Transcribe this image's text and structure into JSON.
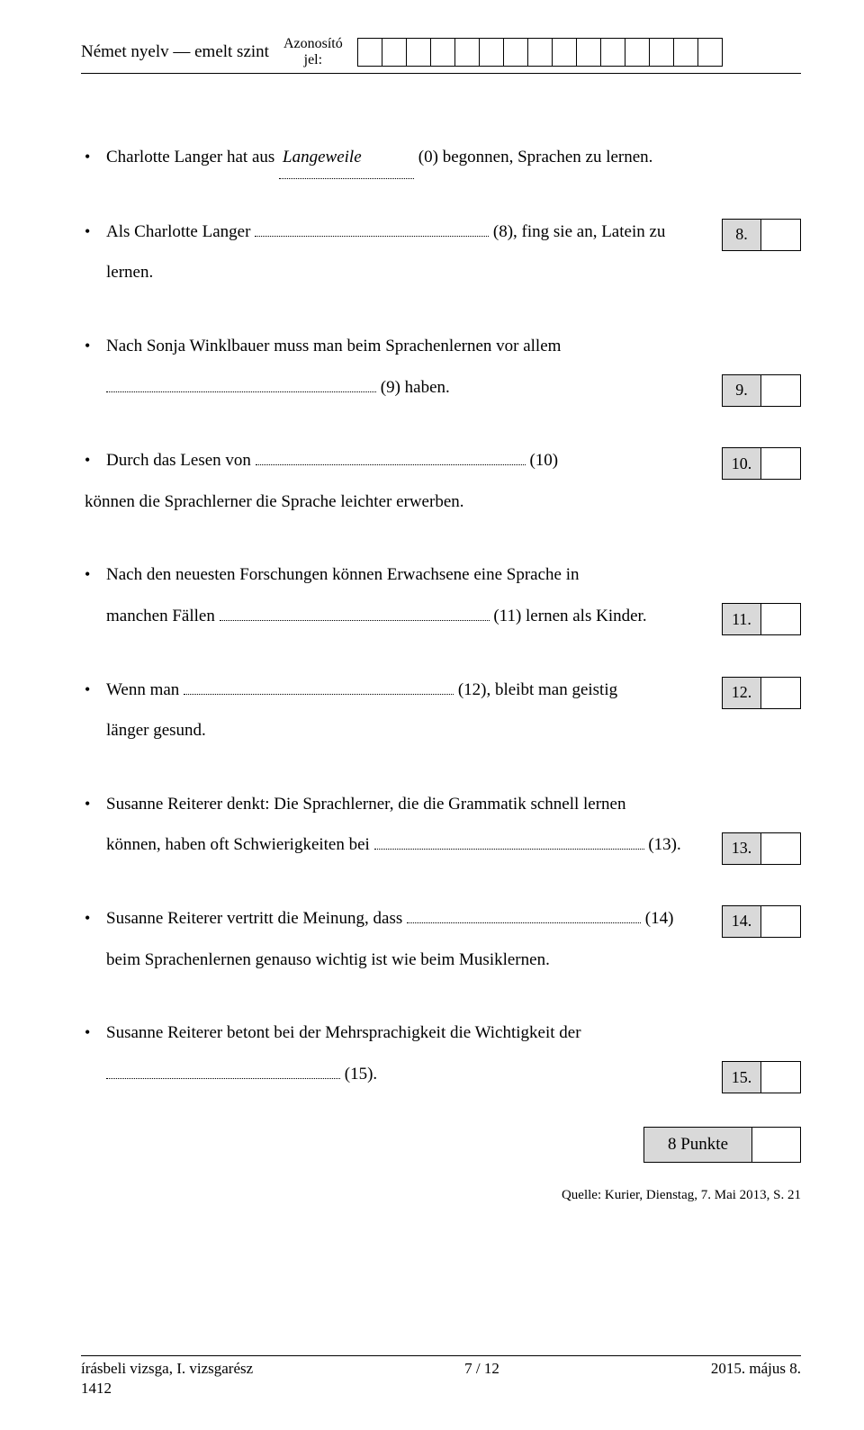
{
  "header": {
    "left": "Német nyelv — emelt szint",
    "mid_line1": "Azonosító",
    "mid_line2": "jel:",
    "id_cell_count": 15
  },
  "items": [
    {
      "pre": "Charlotte Langer hat aus ",
      "example": "Langeweile",
      "post": " (0) begonnen, Sprachen zu lernen.",
      "score": null
    },
    {
      "line1_pre": "Als Charlotte Langer ",
      "line1_post": " (8), fing sie an, Latein zu",
      "line2": "lernen.",
      "dots": "med",
      "score": "8."
    },
    {
      "line1": "Nach Sonja Winklbauer muss man beim Sprachenlernen vor allem",
      "line2_pre": "",
      "line2_post": " (9) haben.",
      "dots": "long",
      "l2indent": true,
      "score": "9."
    },
    {
      "line1_pre": "Durch das Lesen von ",
      "line1_post": " (10)",
      "line2_noindent": "können die Sprachlerner die Sprache leichter erwerben.",
      "dots": "long",
      "score": "10."
    },
    {
      "line1": "Nach den neuesten Forschungen können Erwachsene eine Sprache in",
      "line2_pre": "manchen Fällen ",
      "line2_post": " (11) lernen als Kinder.",
      "dots": "long",
      "score": "11."
    },
    {
      "line1_pre": "Wenn man ",
      "line1_post": " (12), bleibt man  geistig",
      "line2": "länger gesund.",
      "dots": "long",
      "score": "12."
    },
    {
      "line1": "Susanne Reiterer denkt: Die Sprachlerner, die die Grammatik schnell lernen",
      "line2_pre": "können, haben oft Schwierigkeiten bei ",
      "line2_post": " (13).",
      "dots": "long",
      "score": "13."
    },
    {
      "line1_pre": "Susanne Reiterer vertritt die Meinung, dass ",
      "line1_post": " (14)",
      "line2": "beim Sprachenlernen genauso wichtig ist wie beim Musiklernen.",
      "dots": "med",
      "score": "14."
    },
    {
      "line1": "Susanne Reiterer betont bei der Mehrsprachigkeit die Wichtigkeit der",
      "line2_pre": "",
      "line2_post": " (15).",
      "dots": "med",
      "l2indent": true,
      "score": "15."
    }
  ],
  "punkte": "8 Punkte",
  "quelle": "Quelle: Kurier, Dienstag, 7. Mai 2013, S. 21",
  "footer": {
    "left": "írásbeli vizsga, I. vizsgarész",
    "center": "7 / 12",
    "right": "2015. május 8.",
    "code": "1412"
  },
  "colors": {
    "score_bg": "#d9d9d9",
    "page_bg": "#ffffff"
  }
}
